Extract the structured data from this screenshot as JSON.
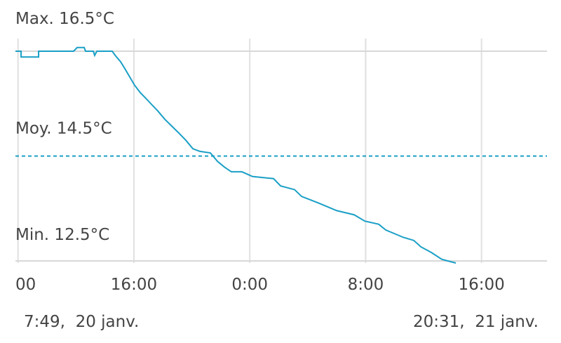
{
  "chart_data": {
    "type": "line",
    "x": [
      7.82,
      8.21,
      8.21,
      9.42,
      9.42,
      11.84,
      12.08,
      12.57,
      12.66,
      13.2,
      13.29,
      13.44,
      14.5,
      14.74,
      15.08,
      15.37,
      15.71,
      16.05,
      16.44,
      16.83,
      17.17,
      17.65,
      18.14,
      18.62,
      19.1,
      19.59,
      20.07,
      20.55,
      21.28,
      21.77,
      22.25,
      22.73,
      23.46,
      24.19,
      25.64,
      26.13,
      27.09,
      27.58,
      28.79,
      30.0,
      31.21,
      31.94,
      32.9,
      33.39,
      34.6,
      35.33,
      35.81,
      36.54,
      37.26,
      38.23
    ],
    "series": [
      {
        "color": "#1a9fc6",
        "values": [
          16.5,
          16.5,
          16.39,
          16.39,
          16.5,
          16.5,
          16.57,
          16.57,
          16.5,
          16.5,
          16.42,
          16.5,
          16.5,
          16.41,
          16.3,
          16.17,
          16.01,
          15.85,
          15.71,
          15.6,
          15.5,
          15.36,
          15.2,
          15.07,
          14.94,
          14.8,
          14.64,
          14.59,
          14.56,
          14.4,
          14.29,
          14.2,
          14.2,
          14.11,
          14.07,
          13.93,
          13.86,
          13.73,
          13.6,
          13.46,
          13.38,
          13.26,
          13.2,
          13.09,
          12.95,
          12.89,
          12.77,
          12.66,
          12.53,
          12.46
        ]
      }
    ],
    "xlim": [
      7.82,
      44.52
    ],
    "xticks": [
      {
        "value": 8,
        "label": "00"
      },
      {
        "value": 16,
        "label": "16:00"
      },
      {
        "value": 24,
        "label": "0:00"
      },
      {
        "value": 32,
        "label": "8:00"
      },
      {
        "value": 40,
        "label": "16:00"
      }
    ],
    "ylim": [
      12.5,
      16.5
    ],
    "yticks": [
      {
        "value": 16.5,
        "label": "Max. 16.5°C"
      },
      {
        "value": 14.5,
        "label": "Moy. 14.5°C"
      },
      {
        "value": 12.5,
        "label": "Min. 12.5°C"
      }
    ],
    "start_label": "7:49,  20 janv.",
    "end_label": "20:31,  21 janv."
  }
}
